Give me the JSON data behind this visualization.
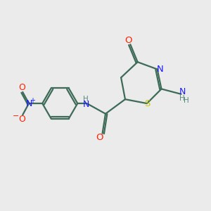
{
  "background_color": "#ebebeb",
  "bond_color": "#3d6b58",
  "atom_colors": {
    "O": "#ff2200",
    "N": "#1a1aff",
    "S": "#cccc00",
    "H": "#5a8a7a",
    "C": "#3d6b58"
  },
  "figsize": [
    3.0,
    3.0
  ],
  "dpi": 100
}
